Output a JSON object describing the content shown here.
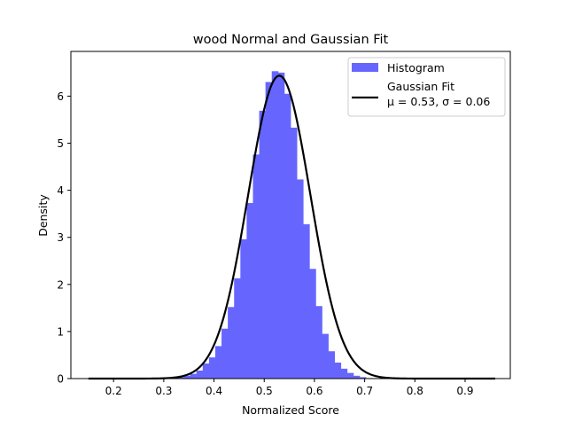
{
  "chart_data": {
    "type": "bar",
    "title": "wood Normal and Gaussian Fit",
    "xlabel": "Normalized Score",
    "ylabel": "Density",
    "xlim": [
      0.115,
      0.99
    ],
    "ylim": [
      0,
      6.95
    ],
    "xticks": [
      0.2,
      0.3,
      0.4,
      0.5,
      0.6,
      0.7,
      0.8,
      0.9
    ],
    "xtick_labels": [
      "0.2",
      "0.3",
      "0.4",
      "0.5",
      "0.6",
      "0.7",
      "0.8",
      "0.9"
    ],
    "yticks": [
      0,
      1,
      2,
      3,
      4,
      5,
      6
    ],
    "ytick_labels": [
      "0",
      "1",
      "2",
      "3",
      "4",
      "5",
      "6"
    ],
    "grid": false,
    "legend_position": "top-right",
    "histogram": {
      "name": "Histogram",
      "color": "#6666ff",
      "bin_width": 0.0125,
      "bins": [
        {
          "x": 0.315,
          "y": 0.01
        },
        {
          "x": 0.3275,
          "y": 0.03
        },
        {
          "x": 0.34,
          "y": 0.06
        },
        {
          "x": 0.3525,
          "y": 0.1
        },
        {
          "x": 0.365,
          "y": 0.17
        },
        {
          "x": 0.3775,
          "y": 0.32
        },
        {
          "x": 0.39,
          "y": 0.45
        },
        {
          "x": 0.4025,
          "y": 0.69
        },
        {
          "x": 0.415,
          "y": 1.06
        },
        {
          "x": 0.4275,
          "y": 1.52
        },
        {
          "x": 0.44,
          "y": 2.13
        },
        {
          "x": 0.4525,
          "y": 2.96
        },
        {
          "x": 0.465,
          "y": 3.73
        },
        {
          "x": 0.4775,
          "y": 4.76
        },
        {
          "x": 0.49,
          "y": 5.69
        },
        {
          "x": 0.5025,
          "y": 6.3
        },
        {
          "x": 0.515,
          "y": 6.53
        },
        {
          "x": 0.5275,
          "y": 6.5
        },
        {
          "x": 0.54,
          "y": 6.05
        },
        {
          "x": 0.5525,
          "y": 5.33
        },
        {
          "x": 0.565,
          "y": 4.23
        },
        {
          "x": 0.5775,
          "y": 3.28
        },
        {
          "x": 0.59,
          "y": 2.33
        },
        {
          "x": 0.6025,
          "y": 1.54
        },
        {
          "x": 0.615,
          "y": 0.95
        },
        {
          "x": 0.6275,
          "y": 0.58
        },
        {
          "x": 0.64,
          "y": 0.34
        },
        {
          "x": 0.6525,
          "y": 0.21
        },
        {
          "x": 0.665,
          "y": 0.12
        },
        {
          "x": 0.6775,
          "y": 0.06
        },
        {
          "x": 0.69,
          "y": 0.03
        },
        {
          "x": 0.7025,
          "y": 0.01
        }
      ]
    },
    "fit": {
      "name": "Gaussian Fit",
      "params_label": "μ = 0.53,  σ = 0.06",
      "mu": 0.53,
      "sigma": 0.062,
      "color": "#000000",
      "x_range": [
        0.15,
        0.96
      ]
    }
  }
}
